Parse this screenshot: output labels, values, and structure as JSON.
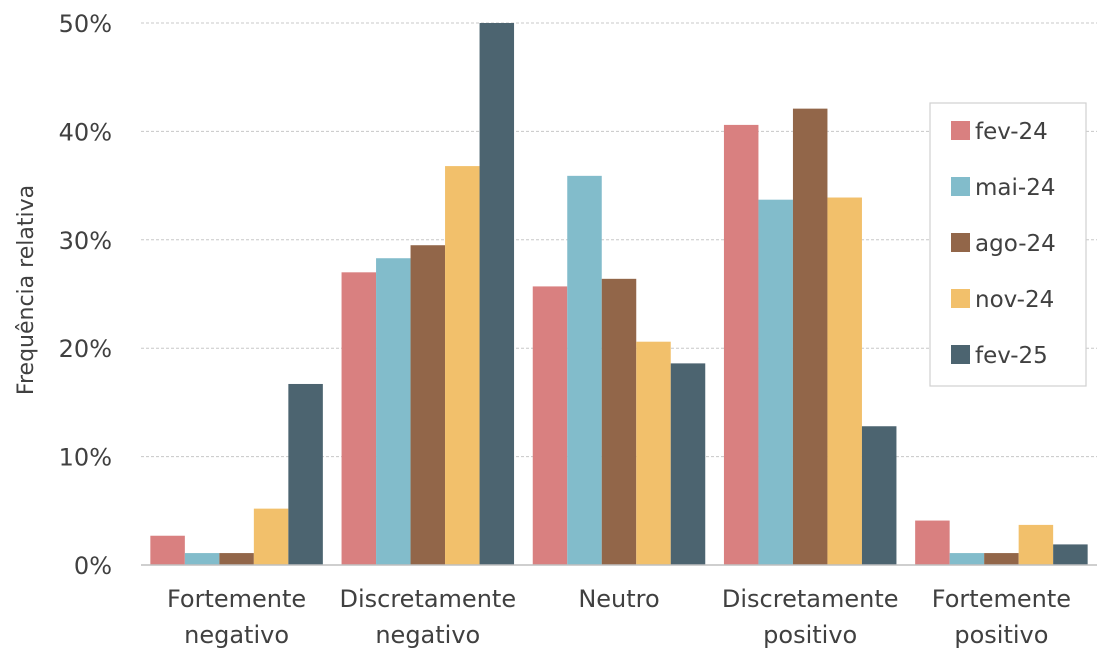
{
  "chart_data": {
    "type": "bar",
    "title": "",
    "xlabel": "",
    "ylabel": "Frequência relativa",
    "ylim": [
      0,
      50
    ],
    "y_ticks": [
      "0%",
      "10%",
      "20%",
      "30%",
      "40%",
      "50%"
    ],
    "y_tick_values": [
      0,
      10,
      20,
      30,
      40,
      50
    ],
    "grid": true,
    "legend_position": "right",
    "categories": [
      [
        "Fortemente",
        "negativo"
      ],
      [
        "Discretamente",
        "negativo"
      ],
      [
        "Neutro"
      ],
      [
        "Discretamente",
        "positivo"
      ],
      [
        "Fortemente",
        "positivo"
      ]
    ],
    "series": [
      {
        "name": "fev-24",
        "color": "#d98080",
        "values": [
          2.7,
          27.0,
          25.7,
          40.6,
          4.1
        ]
      },
      {
        "name": "mai-24",
        "color": "#82bccb",
        "values": [
          1.1,
          28.3,
          35.9,
          33.7,
          1.1
        ]
      },
      {
        "name": "ago-24",
        "color": "#926649",
        "values": [
          1.1,
          29.5,
          26.4,
          42.1,
          1.1
        ]
      },
      {
        "name": "nov-24",
        "color": "#f2c06b",
        "values": [
          5.2,
          36.8,
          20.6,
          33.9,
          3.7
        ]
      },
      {
        "name": "fev-25",
        "color": "#4c6470",
        "values": [
          16.7,
          50.0,
          18.6,
          12.8,
          1.9
        ]
      }
    ]
  }
}
